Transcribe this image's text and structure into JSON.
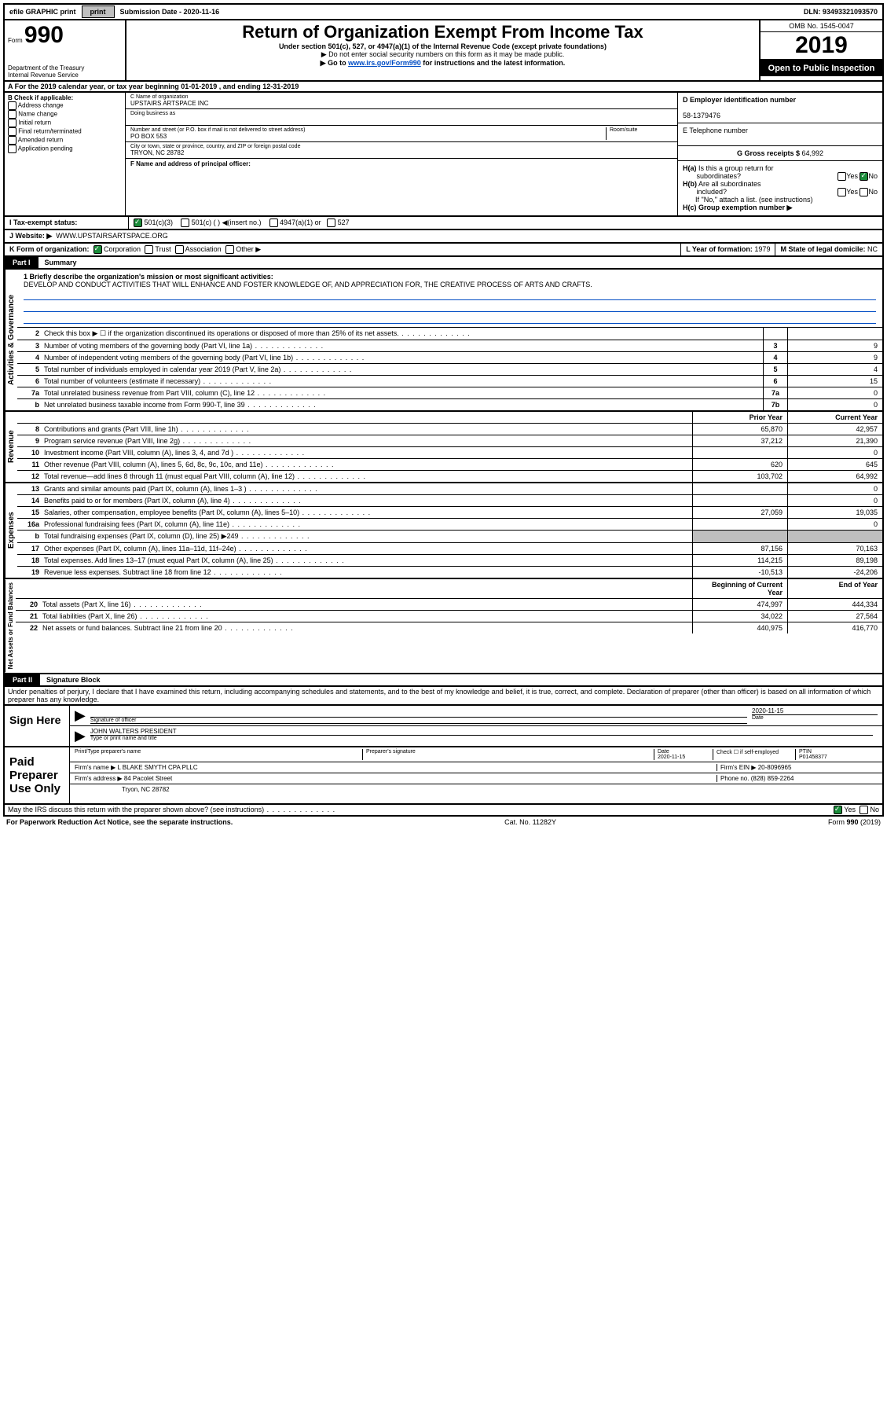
{
  "topbar": {
    "efile": "efile GRAPHIC print",
    "submission_label": "Submission Date -",
    "submission_date": "2020-11-16",
    "dln_label": "DLN:",
    "dln": "93493321093570"
  },
  "header": {
    "form_label": "Form",
    "form_number": "990",
    "dept": "Department of the Treasury\nInternal Revenue Service",
    "title": "Return of Organization Exempt From Income Tax",
    "sub1": "Under section 501(c), 527, or 4947(a)(1) of the Internal Revenue Code (except private foundations)",
    "sub2": "▶ Do not enter social security numbers on this form as it may be made public.",
    "sub3_pre": "▶ Go to ",
    "sub3_link": "www.irs.gov/Form990",
    "sub3_post": " for instructions and the latest information.",
    "omb": "OMB No. 1545-0047",
    "year": "2019",
    "open": "Open to Public Inspection"
  },
  "row_a": {
    "text": "A For the 2019 calendar year, or tax year beginning 01-01-2019    , and ending 12-31-2019"
  },
  "box_b": {
    "title": "B Check if applicable:",
    "opts": [
      "Address change",
      "Name change",
      "Initial return",
      "Final return/terminated",
      "Amended return",
      "Application pending"
    ]
  },
  "box_c": {
    "name_label": "C Name of organization",
    "name": "UPSTAIRS ARTSPACE INC",
    "dba_label": "Doing business as",
    "addr_label": "Number and street (or P.O. box if mail is not delivered to street address)",
    "room_label": "Room/suite",
    "addr": "PO BOX 553",
    "city_label": "City or town, state or province, country, and ZIP or foreign postal code",
    "city": "TRYON, NC  28782",
    "officer_label": "F  Name and address of principal officer:"
  },
  "box_d": {
    "ein_label": "D Employer identification number",
    "ein": "58-1379476",
    "tel_label": "E Telephone number",
    "gross_label": "G Gross receipts $",
    "gross": "64,992"
  },
  "box_h": {
    "ha": "H(a)  Is this a group return for subordinates?",
    "hb": "H(b)  Are all subordinates included?",
    "hb_note": "If \"No,\" attach a list. (see instructions)",
    "hc": "H(c)  Group exemption number ▶",
    "yes": "Yes",
    "no": "No"
  },
  "tax_status": {
    "label": "I   Tax-exempt status:",
    "opt1": "501(c)(3)",
    "opt2": "501(c) (   ) ◀(insert no.)",
    "opt3": "4947(a)(1) or",
    "opt4": "527"
  },
  "website": {
    "label": "J   Website: ▶",
    "value": "WWW.UPSTAIRSARTSPACE.ORG"
  },
  "row_k": {
    "label": "K Form of organization:",
    "opts": [
      "Corporation",
      "Trust",
      "Association",
      "Other ▶"
    ],
    "l_label": "L Year of formation:",
    "l_val": "1979",
    "m_label": "M State of legal domicile:",
    "m_val": "NC"
  },
  "part1": {
    "label": "Part I",
    "name": "Summary",
    "mission_label": "1  Briefly describe the organization's mission or most significant activities:",
    "mission": "DEVELOP AND CONDUCT ACTIVITIES THAT WILL ENHANCE AND FOSTER KNOWLEDGE OF, AND APPRECIATION FOR, THE CREATIVE PROCESS OF ARTS AND CRAFTS."
  },
  "activities_lines": [
    {
      "n": "2",
      "d": "Check this box ▶ ☐  if the organization discontinued its operations or disposed of more than 25% of its net assets.",
      "b": "",
      "v": ""
    },
    {
      "n": "3",
      "d": "Number of voting members of the governing body (Part VI, line 1a)",
      "b": "3",
      "v": "9"
    },
    {
      "n": "4",
      "d": "Number of independent voting members of the governing body (Part VI, line 1b)",
      "b": "4",
      "v": "9"
    },
    {
      "n": "5",
      "d": "Total number of individuals employed in calendar year 2019 (Part V, line 2a)",
      "b": "5",
      "v": "4"
    },
    {
      "n": "6",
      "d": "Total number of volunteers (estimate if necessary)",
      "b": "6",
      "v": "15"
    },
    {
      "n": "7a",
      "d": "Total unrelated business revenue from Part VIII, column (C), line 12",
      "b": "7a",
      "v": "0"
    },
    {
      "n": "b",
      "d": "Net unrelated business taxable income from Form 990-T, line 39",
      "b": "7b",
      "v": "0"
    }
  ],
  "col_headers": {
    "prior": "Prior Year",
    "current": "Current Year"
  },
  "revenue_lines": [
    {
      "n": "8",
      "d": "Contributions and grants (Part VIII, line 1h)",
      "py": "65,870",
      "cy": "42,957"
    },
    {
      "n": "9",
      "d": "Program service revenue (Part VIII, line 2g)",
      "py": "37,212",
      "cy": "21,390"
    },
    {
      "n": "10",
      "d": "Investment income (Part VIII, column (A), lines 3, 4, and 7d )",
      "py": "",
      "cy": "0"
    },
    {
      "n": "11",
      "d": "Other revenue (Part VIII, column (A), lines 5, 6d, 8c, 9c, 10c, and 11e)",
      "py": "620",
      "cy": "645"
    },
    {
      "n": "12",
      "d": "Total revenue—add lines 8 through 11 (must equal Part VIII, column (A), line 12)",
      "py": "103,702",
      "cy": "64,992"
    }
  ],
  "expense_lines": [
    {
      "n": "13",
      "d": "Grants and similar amounts paid (Part IX, column (A), lines 1–3 )",
      "py": "",
      "cy": "0"
    },
    {
      "n": "14",
      "d": "Benefits paid to or for members (Part IX, column (A), line 4)",
      "py": "",
      "cy": "0"
    },
    {
      "n": "15",
      "d": "Salaries, other compensation, employee benefits (Part IX, column (A), lines 5–10)",
      "py": "27,059",
      "cy": "19,035"
    },
    {
      "n": "16a",
      "d": "Professional fundraising fees (Part IX, column (A), line 11e)",
      "py": "",
      "cy": "0"
    },
    {
      "n": "b",
      "d": "Total fundraising expenses (Part IX, column (D), line 25) ▶249",
      "py": "shaded",
      "cy": "shaded"
    },
    {
      "n": "17",
      "d": "Other expenses (Part IX, column (A), lines 11a–11d, 11f–24e)",
      "py": "87,156",
      "cy": "70,163"
    },
    {
      "n": "18",
      "d": "Total expenses. Add lines 13–17 (must equal Part IX, column (A), line 25)",
      "py": "114,215",
      "cy": "89,198"
    },
    {
      "n": "19",
      "d": "Revenue less expenses. Subtract line 18 from line 12",
      "py": "-10,513",
      "cy": "-24,206"
    }
  ],
  "net_headers": {
    "begin": "Beginning of Current Year",
    "end": "End of Year"
  },
  "net_lines": [
    {
      "n": "20",
      "d": "Total assets (Part X, line 16)",
      "py": "474,997",
      "cy": "444,334"
    },
    {
      "n": "21",
      "d": "Total liabilities (Part X, line 26)",
      "py": "34,022",
      "cy": "27,564"
    },
    {
      "n": "22",
      "d": "Net assets or fund balances. Subtract line 21 from line 20",
      "py": "440,975",
      "cy": "416,770"
    }
  ],
  "section_labels": {
    "activities": "Activities & Governance",
    "revenue": "Revenue",
    "expenses": "Expenses",
    "net": "Net Assets or Fund Balances"
  },
  "part2": {
    "label": "Part II",
    "name": "Signature Block",
    "penalty": "Under penalties of perjury, I declare that I have examined this return, including accompanying schedules and statements, and to the best of my knowledge and belief, it is true, correct, and complete. Declaration of preparer (other than officer) is based on all information of which preparer has any knowledge."
  },
  "sign": {
    "here": "Sign Here",
    "sig_label": "Signature of officer",
    "date_label": "Date",
    "date": "2020-11-15",
    "name": "JOHN WALTERS PRESIDENT",
    "name_label": "Type or print name and title"
  },
  "paid": {
    "title": "Paid Preparer Use Only",
    "h1": "Print/Type preparer's name",
    "h2": "Preparer's signature",
    "h3": "Date",
    "date": "2020-11-15",
    "check": "Check ☐ if self-employed",
    "ptin_label": "PTIN",
    "ptin": "P01458377",
    "firm_label": "Firm's name    ▶",
    "firm": "L BLAKE SMYTH CPA PLLC",
    "ein_label": "Firm's EIN ▶",
    "ein": "20-8096965",
    "addr_label": "Firm's address ▶",
    "addr": "84 Pacolet Street",
    "city": "Tryon, NC  28782",
    "phone_label": "Phone no.",
    "phone": "(828) 859-2264"
  },
  "discuss": {
    "q": "May the IRS discuss this return with the preparer shown above? (see instructions)",
    "yes": "Yes",
    "no": "No"
  },
  "footer": {
    "left": "For Paperwork Reduction Act Notice, see the separate instructions.",
    "mid": "Cat. No. 11282Y",
    "right": "Form 990 (2019)"
  }
}
